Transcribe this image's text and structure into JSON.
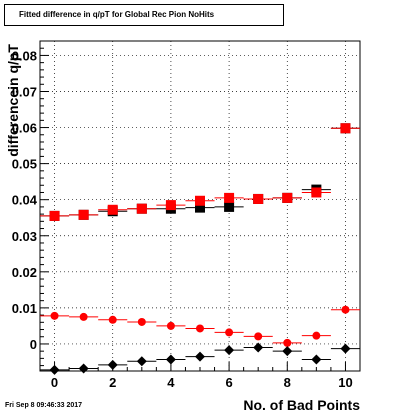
{
  "chart_data": {
    "type": "scatter",
    "title": "Fitted difference in q/pT for Global Rec Pion NoHits",
    "xlabel": "No. of Bad Points",
    "ylabel": "differencein q/pT",
    "xlim": [
      -0.5,
      10.5
    ],
    "ylim": [
      -0.0075,
      0.084
    ],
    "x_ticks": [
      0,
      2,
      4,
      6,
      8,
      10
    ],
    "y_ticks": [
      0,
      0.01,
      0.02,
      0.03,
      0.04,
      0.05,
      0.06,
      0.07,
      0.08
    ],
    "x_tick_labels": [
      "0",
      "2",
      "4",
      "6",
      "8",
      "10"
    ],
    "y_tick_labels": [
      "0",
      "0.01",
      "0.02",
      "0.03",
      "0.04",
      "0.05",
      "0.06",
      "0.07",
      "0.08"
    ],
    "grid": true,
    "series": [
      {
        "marker": "square",
        "color": "#000000",
        "x": [
          0,
          1,
          2,
          3,
          4,
          5,
          6,
          7,
          8,
          9,
          10
        ],
        "y": [
          0.0355,
          0.0358,
          0.0368,
          0.0375,
          0.0375,
          0.0378,
          0.038,
          0.0402,
          0.0405,
          0.0428,
          0.0598
        ]
      },
      {
        "marker": "square",
        "color": "#ff0000",
        "x": [
          0,
          1,
          2,
          3,
          4,
          5,
          6,
          7,
          8,
          9,
          10
        ],
        "y": [
          0.0355,
          0.0358,
          0.0372,
          0.0375,
          0.0385,
          0.0397,
          0.0405,
          0.0402,
          0.0405,
          0.042,
          0.0598
        ]
      },
      {
        "marker": "circle",
        "color": "#ff0000",
        "x": [
          0,
          1,
          2,
          3,
          4,
          5,
          6,
          7,
          8,
          9,
          10
        ],
        "y": [
          0.0078,
          0.0075,
          0.0067,
          0.0061,
          0.005,
          0.0043,
          0.0032,
          0.0021,
          0.0003,
          0.0023,
          0.0095
        ]
      },
      {
        "marker": "diamond",
        "color": "#000000",
        "x": [
          0,
          1,
          2,
          3,
          4,
          5,
          6,
          7,
          8,
          9,
          10
        ],
        "y": [
          -0.0072,
          -0.0068,
          -0.0058,
          -0.0048,
          -0.0043,
          -0.0035,
          -0.0017,
          -0.001,
          -0.002,
          -0.0043,
          -0.0013
        ]
      }
    ]
  },
  "footer": "Fri Sep  8 09:46:33 2017"
}
